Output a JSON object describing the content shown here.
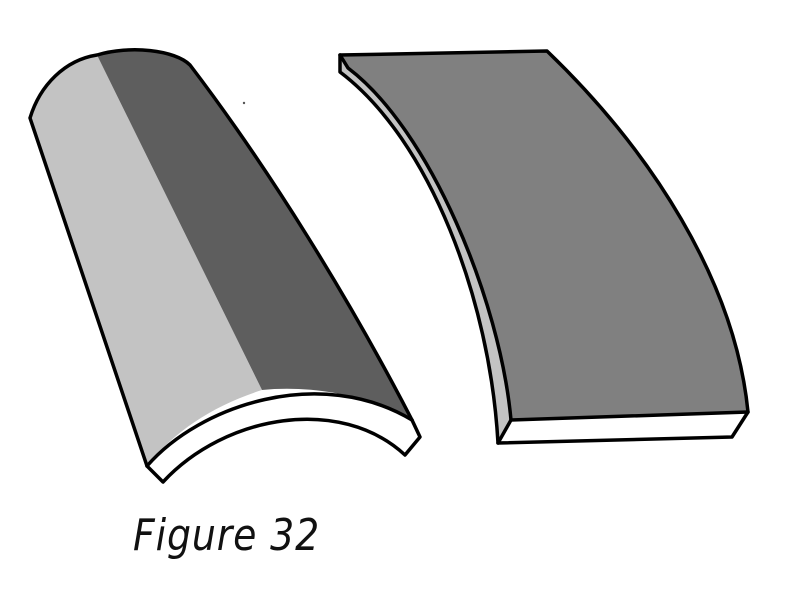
{
  "figure": {
    "caption": "Figure 32"
  },
  "colors": {
    "background": "#ffffff",
    "light_face": "#c3c3c3",
    "dark_face": "#5e5e5e",
    "medium_face": "#808080",
    "edge_face": "#ffffff",
    "outline": "#000000"
  }
}
